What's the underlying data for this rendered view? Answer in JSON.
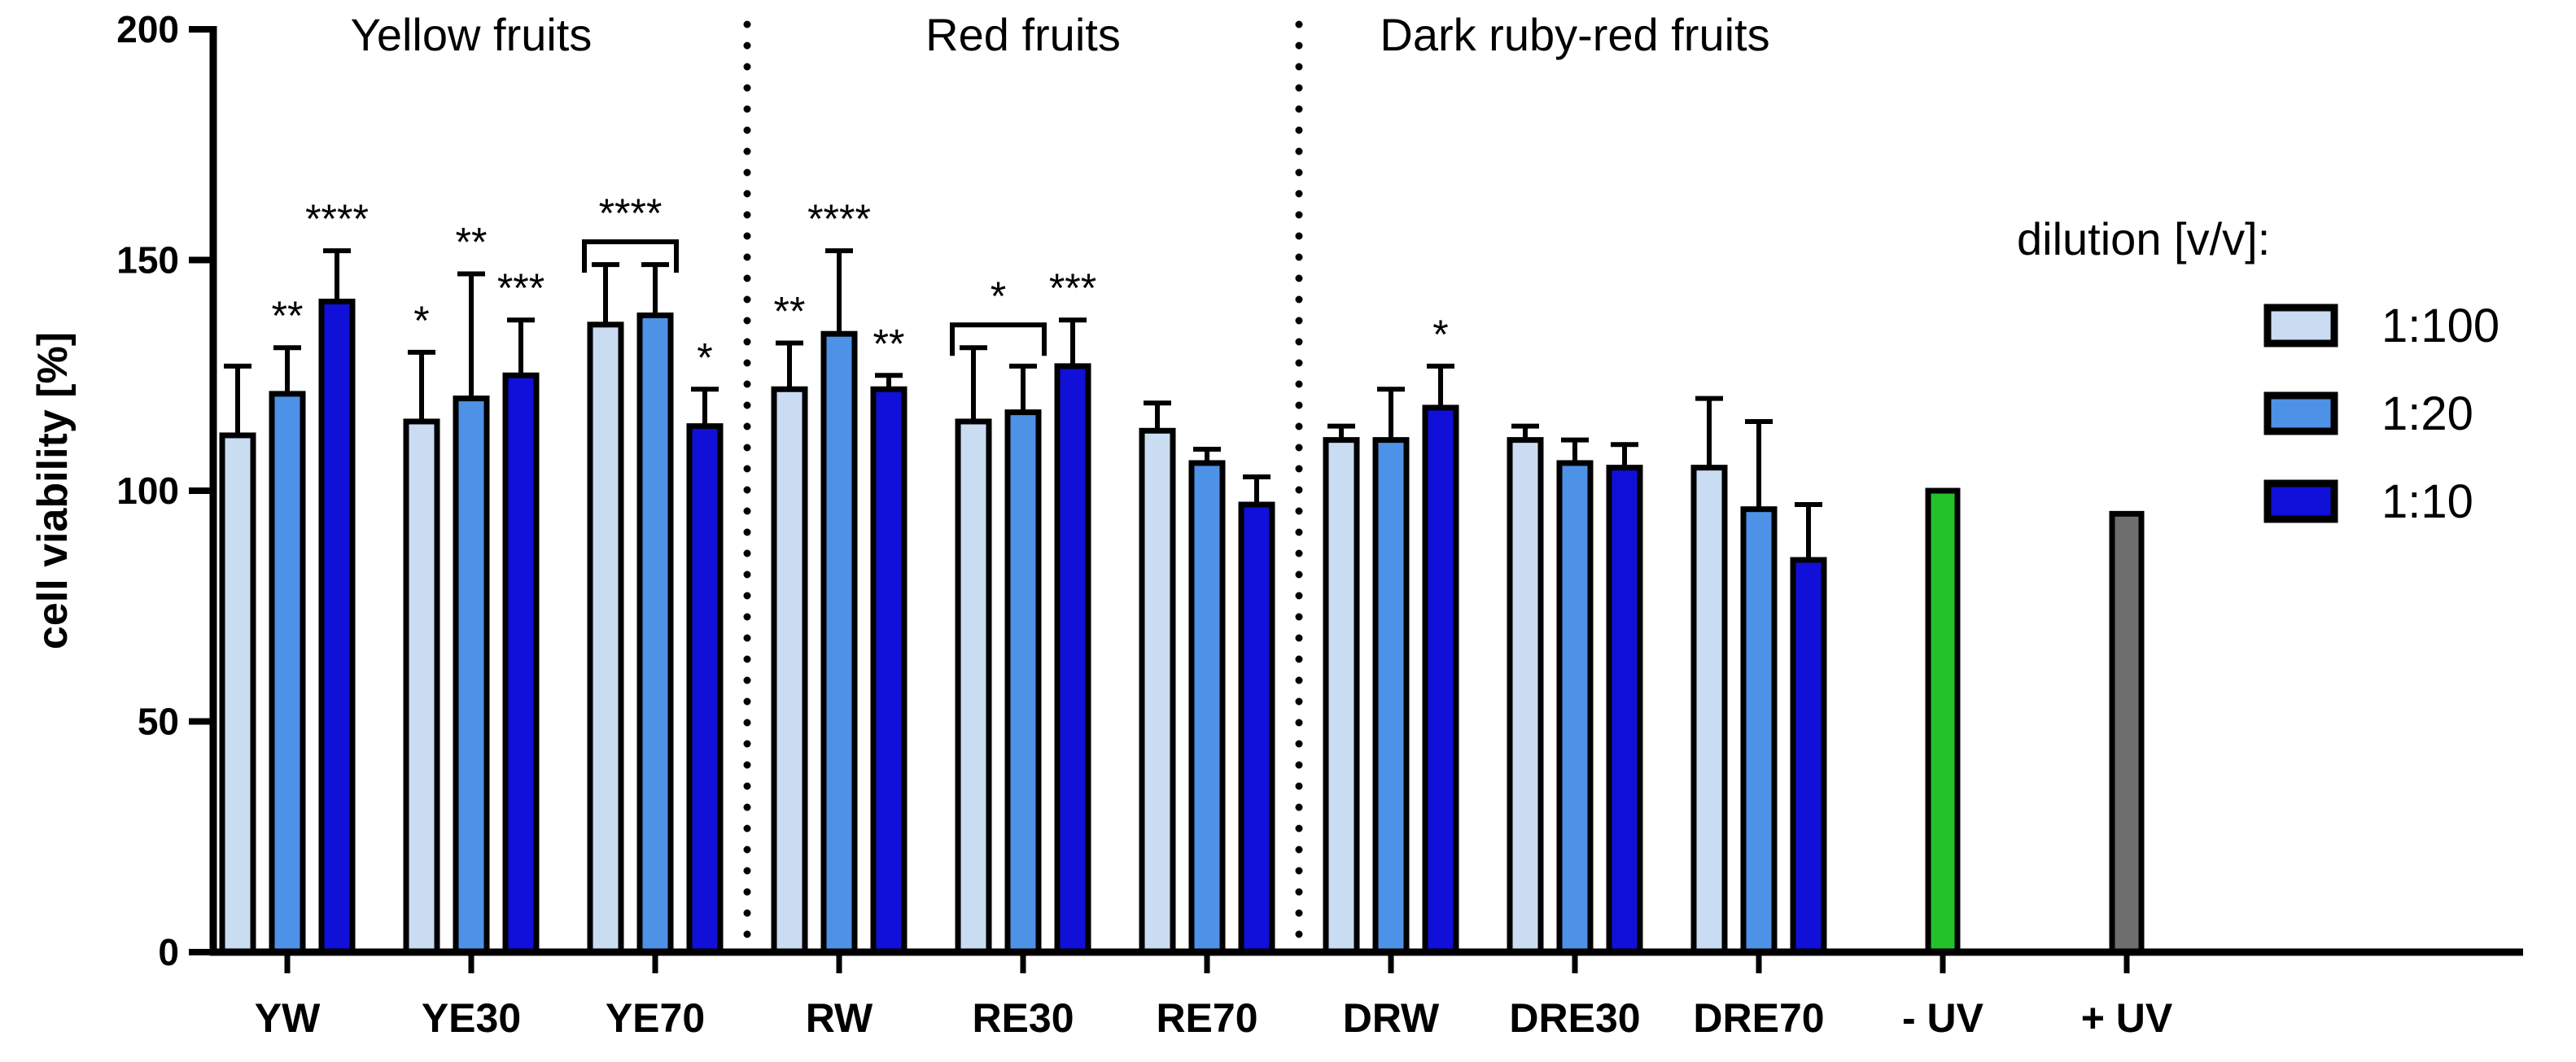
{
  "chart_data": {
    "type": "bar",
    "ylabel": "cell viability [%]",
    "xlabel": "",
    "ylim": [
      0,
      200
    ],
    "yticks": [
      0,
      50,
      100,
      150,
      200
    ],
    "group_labels": [
      "Yellow fruits",
      "Red fruits",
      "Dark ruby-red fruits"
    ],
    "categories": [
      "YW",
      "YE30",
      "YE70",
      "RW",
      "RE30",
      "RE70",
      "DRW",
      "DRE30",
      "DRE70",
      "- UV",
      "+ UV"
    ],
    "legend": {
      "title": "dilution [v/v]:",
      "position": "right",
      "entries": [
        "1:100",
        "1:20",
        "1:10"
      ]
    },
    "colors": {
      "1:100": "#c9dcf2",
      "1:20": "#4d92e6",
      "1:10": "#1010d8",
      "- UV": "#22c22a",
      "+ UV": "#6e6e6e",
      "outline": "#000000"
    },
    "series": [
      {
        "name": "1:100",
        "values": [
          112,
          115,
          136,
          122,
          115,
          113,
          111,
          111,
          105,
          null,
          null
        ],
        "errors": [
          15,
          15,
          13,
          10,
          16,
          6,
          3,
          3,
          15,
          null,
          null
        ]
      },
      {
        "name": "1:20",
        "values": [
          121,
          120,
          138,
          134,
          117,
          106,
          111,
          106,
          96,
          null,
          null
        ],
        "errors": [
          10,
          27,
          11,
          18,
          10,
          3,
          11,
          5,
          19,
          null,
          null
        ]
      },
      {
        "name": "1:10",
        "values": [
          141,
          125,
          114,
          122,
          127,
          97,
          118,
          105,
          85,
          null,
          null
        ],
        "errors": [
          11,
          12,
          8,
          3,
          10,
          6,
          9,
          5,
          12,
          null,
          null
        ]
      }
    ],
    "controls": [
      {
        "category": "- UV",
        "value": 100
      },
      {
        "category": "+ UV",
        "value": 95
      }
    ],
    "significance": [
      {
        "category": "YW",
        "series": "1:20",
        "label": "**"
      },
      {
        "category": "YW",
        "series": "1:10",
        "label": "****"
      },
      {
        "category": "YE30",
        "series": "1:100",
        "label": "*"
      },
      {
        "category": "YE30",
        "series": "1:20",
        "label": "**"
      },
      {
        "category": "YE30",
        "series": "1:10",
        "label": "***"
      },
      {
        "category": "YE70",
        "series": "1:10",
        "label": "*"
      },
      {
        "category": "RW",
        "series": "1:100",
        "label": "**"
      },
      {
        "category": "RW",
        "series": "1:20",
        "label": "****"
      },
      {
        "category": "RW",
        "series": "1:10",
        "label": "**"
      },
      {
        "category": "RE30",
        "series": "1:10",
        "label": "***"
      },
      {
        "category": "DRW",
        "series": "1:10",
        "label": "*"
      }
    ],
    "brackets": [
      {
        "category": "YE70",
        "from": "1:100",
        "to": "1:20",
        "label": "****"
      },
      {
        "category": "RE30",
        "from": "1:100",
        "to": "1:20",
        "label": "*"
      }
    ],
    "group_dividers_after": [
      "YE70",
      "RE70"
    ]
  }
}
